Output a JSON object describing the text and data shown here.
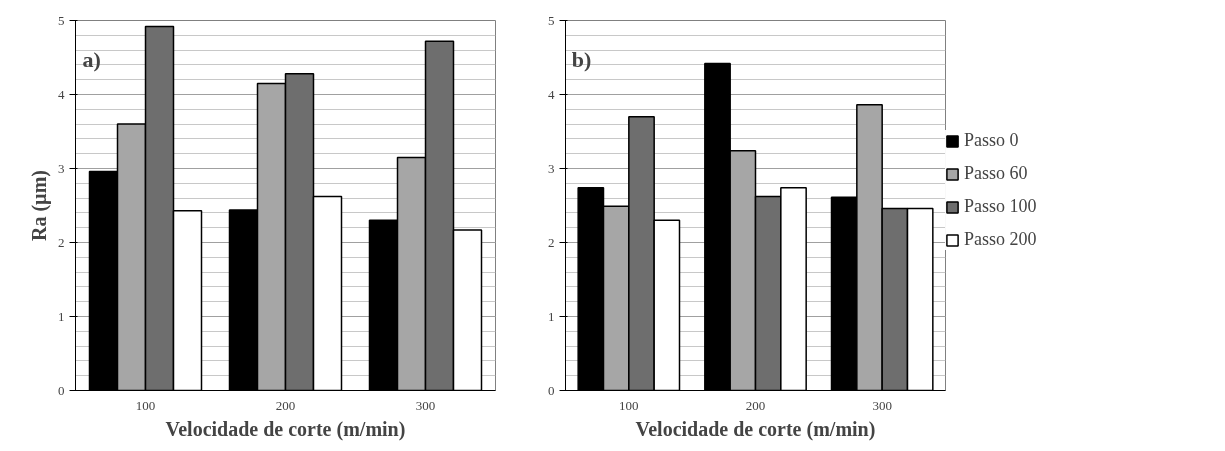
{
  "chart_data": [
    {
      "type": "bar",
      "categories": [
        "100",
        "200",
        "300"
      ],
      "xlabel": "Velocidade de corte (m/min)",
      "ylabel": "Ra (µm)",
      "annotations": [
        "a)"
      ],
      "ylim": [
        0,
        5
      ],
      "yticks": [
        0,
        1,
        2,
        3,
        4,
        5
      ],
      "grid": "y",
      "series": [
        {
          "color": "#000000",
          "values": [
            2.96,
            2.44,
            2.3
          ]
        },
        {
          "color": "#a6a6a6",
          "values": [
            3.6,
            4.15,
            3.15
          ]
        },
        {
          "color": "#6e6e6e",
          "values": [
            4.92,
            4.28,
            4.72
          ]
        },
        {
          "color": "#ffffff",
          "values": [
            2.43,
            2.62,
            2.17
          ]
        }
      ]
    },
    {
      "type": "bar",
      "categories": [
        "100",
        "200",
        "300"
      ],
      "xlabel": "Velocidade de corte (m/min)",
      "annotations": [
        "b)"
      ],
      "ylim": [
        0,
        5
      ],
      "yticks": [
        0,
        1,
        2,
        3,
        4,
        5
      ],
      "grid": "y",
      "legend": "right",
      "series": [
        {
          "name": "Passo 0",
          "color": "#000000",
          "values": [
            2.74,
            4.42,
            2.61
          ]
        },
        {
          "name": "Passo 60",
          "color": "#a6a6a6",
          "values": [
            2.49,
            3.24,
            3.86
          ]
        },
        {
          "name": "Passo 100",
          "color": "#6e6e6e",
          "values": [
            3.7,
            2.62,
            2.46
          ]
        },
        {
          "name": "Passo 200",
          "color": "#ffffff",
          "values": [
            2.3,
            2.74,
            2.46
          ]
        }
      ]
    }
  ]
}
